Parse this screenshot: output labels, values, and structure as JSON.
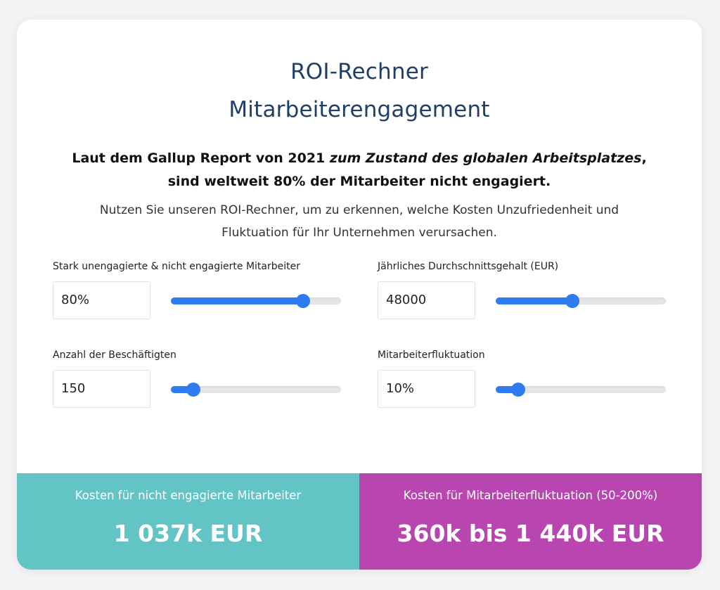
{
  "header": {
    "title_line1": "ROI-Rechner",
    "title_line2": "Mitarbeiterengagement"
  },
  "intro": {
    "before": "Laut dem Gallup Report von 2021",
    "italic": "zum Zustand des globalen Arbeitsplatzes",
    "after": ",",
    "line2": "sind weltweit 80% der Mitarbeiter nicht engagiert."
  },
  "description": {
    "line1": "Nutzen Sie unseren ROI-Rechner, um zu erkennen, welche Kosten Unzufriedenheit und",
    "line2": "Fluktuation für Ihr Unternehmen verursachen."
  },
  "fields": [
    {
      "label": "Stark unengagierte & nicht engagierte Mitarbeiter",
      "value": "80%"
    },
    {
      "label": "Jährliches Durchschnittsgehalt (EUR)",
      "value": "48000"
    },
    {
      "label": "Anzahl der Beschäftigten",
      "value": "150"
    },
    {
      "label": "Mitarbeiterfluktuation",
      "value": "10%"
    }
  ],
  "results": [
    {
      "label": "Kosten für nicht engagierte Mitarbeiter",
      "value": "1 037k EUR"
    },
    {
      "label": "Kosten für Mitarbeiterfluktuation (50-200%)",
      "value": "360k bis 1 440k EUR"
    }
  ]
}
